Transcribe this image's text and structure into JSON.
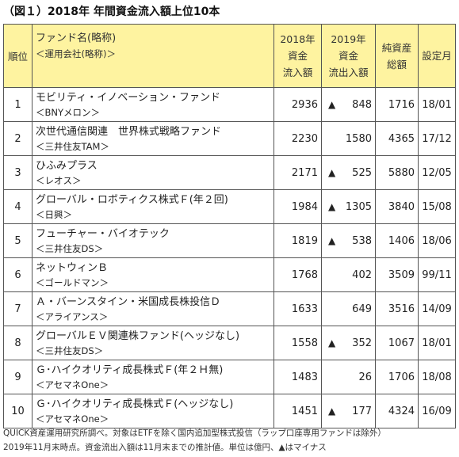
{
  "title": "（図１）2018年 年間資金流入額上位10本",
  "headers": {
    "rank": "順位",
    "fund": "ファンド名(略称)",
    "fund_sub": "＜運用会社(略称)＞",
    "inflow_2018": [
      "2018年",
      "資金",
      "流入額"
    ],
    "flow_2019": [
      "2019年",
      "資金",
      "流出入額"
    ],
    "net_assets": [
      "純資産",
      "総額"
    ],
    "established": "設定月"
  },
  "rows": [
    {
      "rank": "1",
      "name": "モビリティ・イノベーション・ファンド",
      "manager": "＜BNYメロン＞",
      "inflow_2018": "2936",
      "flow_sign": "▲",
      "flow_2019": "848",
      "net_assets": "1716",
      "established": "18/01"
    },
    {
      "rank": "2",
      "name": "次世代通信関連　世界株式戦略ファンド",
      "manager": "＜三井住友TAM＞",
      "inflow_2018": "2230",
      "flow_sign": "",
      "flow_2019": "1580",
      "net_assets": "4365",
      "established": "17/12"
    },
    {
      "rank": "3",
      "name": "ひふみプラス",
      "manager": "＜レオス＞",
      "inflow_2018": "2171",
      "flow_sign": "▲",
      "flow_2019": "525",
      "net_assets": "5880",
      "established": "12/05"
    },
    {
      "rank": "4",
      "name": "グローバル・ロボティクス株式Ｆ(年２回)",
      "manager": "＜日興＞",
      "inflow_2018": "1984",
      "flow_sign": "▲",
      "flow_2019": "1305",
      "net_assets": "3840",
      "established": "15/08"
    },
    {
      "rank": "5",
      "name": "フューチャー・バイオテック",
      "manager": "＜三井住友DS＞",
      "inflow_2018": "1819",
      "flow_sign": "▲",
      "flow_2019": "538",
      "net_assets": "1406",
      "established": "18/06"
    },
    {
      "rank": "6",
      "name": "ネットウィンＢ",
      "manager": "＜ゴールドマン＞",
      "inflow_2018": "1768",
      "flow_sign": "",
      "flow_2019": "402",
      "net_assets": "3509",
      "established": "99/11"
    },
    {
      "rank": "7",
      "name": "Ａ・バーンスタイン・米国成長株投信Ｄ",
      "manager": "＜アライアンス＞",
      "inflow_2018": "1633",
      "flow_sign": "",
      "flow_2019": "649",
      "net_assets": "3516",
      "established": "14/09"
    },
    {
      "rank": "8",
      "name": "グローバルＥＶ関連株ファンド(ヘッジなし)",
      "manager": "＜三井住友DS＞",
      "inflow_2018": "1558",
      "flow_sign": "▲",
      "flow_2019": "352",
      "net_assets": "1067",
      "established": "18/01"
    },
    {
      "rank": "9",
      "name": "Ｇ･ハイクオリティ成長株式Ｆ(年２Ｈ無)",
      "manager": "＜アセマネOne＞",
      "inflow_2018": "1483",
      "flow_sign": "",
      "flow_2019": "26",
      "net_assets": "1706",
      "established": "18/08"
    },
    {
      "rank": "10",
      "name": "Ｇ･ハイクオリティ成長株式Ｆ(ヘッジなし)",
      "manager": "＜アセマネOne＞",
      "inflow_2018": "1451",
      "flow_sign": "▲",
      "flow_2019": "177",
      "net_assets": "4324",
      "established": "16/09"
    }
  ],
  "notes": [
    "QUICK資産運用研究所調べ。対象はETFを除く国内追加型株式投信（ラップ口座専用ファンドは除外）",
    "2019年11月末時点。資金流出入額は11月末までの推計値。単位は億円、▲はマイナス"
  ],
  "colors": {
    "header_bg": "#fef3a0",
    "border": "#555555"
  }
}
